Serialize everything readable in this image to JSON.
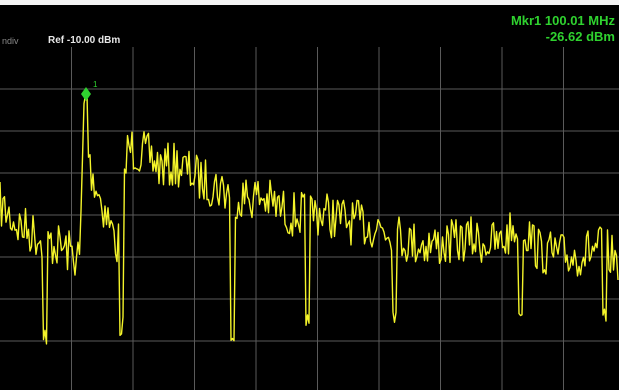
{
  "header": {
    "scale_label": "ndiv",
    "ref_label": "Ref -10.00 dBm"
  },
  "marker": {
    "id_label": "1",
    "freq_text": "Mkr1 100.01 MHz",
    "amp_text": "-26.62 dBm",
    "color": "#2fd22f"
  },
  "trace": {
    "color": "#f4f42a",
    "grid_color": "#5a5a5a"
  }
}
